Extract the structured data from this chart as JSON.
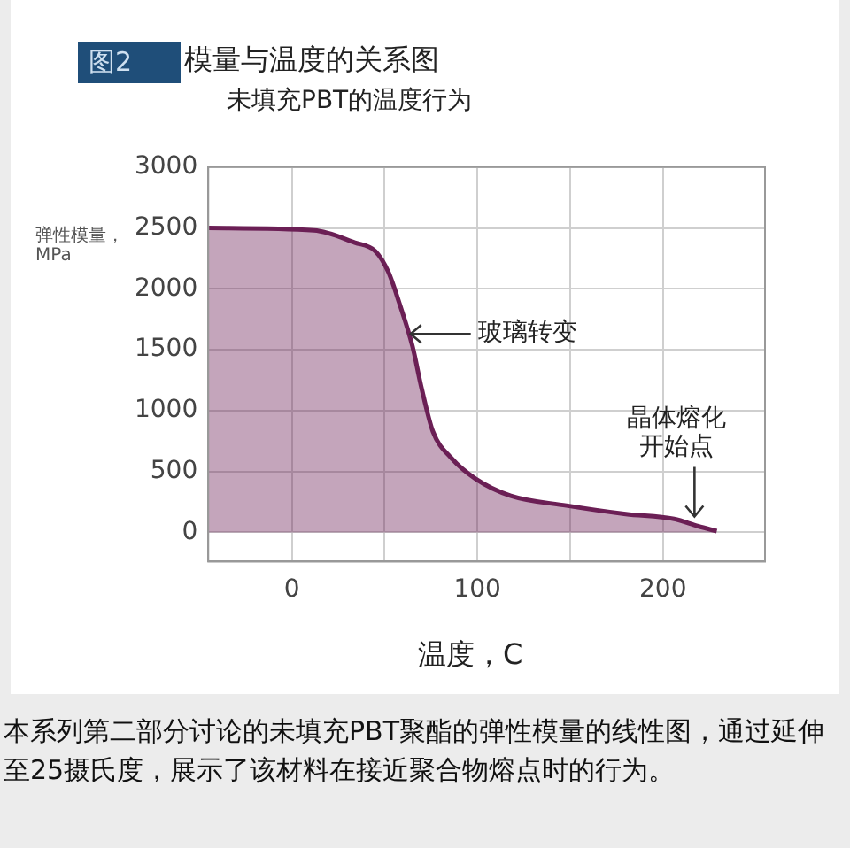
{
  "chart_data": {
    "type": "area",
    "title": "模量与温度的关系图",
    "subtitle": "未填充PBT的温度行为",
    "xlabel": "温度，C",
    "ylabel": "弹性模量，MPa",
    "annotations": [
      "图2",
      {
        "text": "玻璃转变",
        "x": 64,
        "y": 1630
      },
      {
        "text": "晶体熔化开始点",
        "x": 217,
        "y": 130
      },
      "本系列第二部分讨论的未填充PBT聚酯的弹性模量的线性图，通过延伸至25摄氏度，展示了该材料在接近聚合物熔点时的行为。"
    ],
    "x": [
      -45,
      12,
      34,
      45,
      52,
      58,
      65,
      70,
      76,
      86,
      99,
      118,
      148,
      180,
      206,
      219,
      229
    ],
    "series": [
      {
        "color": "#6b1f55",
        "values": [
          2500,
          2480,
          2380,
          2310,
          2140,
          1880,
          1530,
          1180,
          830,
          610,
          440,
          300,
          220,
          150,
          110,
          50,
          10
        ]
      }
    ],
    "xlim": [
      -45,
      255
    ],
    "xticks": [
      0,
      {
        "value": 50,
        "label": null
      },
      100,
      {
        "value": 150,
        "label": null
      },
      200
    ],
    "ylim": [
      -240,
      3000
    ],
    "yticks": [
      0,
      500,
      1000,
      1500,
      2000,
      2500,
      3000
    ],
    "grid": true,
    "legend": false,
    "marker": "none",
    "line_style": "solid"
  }
}
